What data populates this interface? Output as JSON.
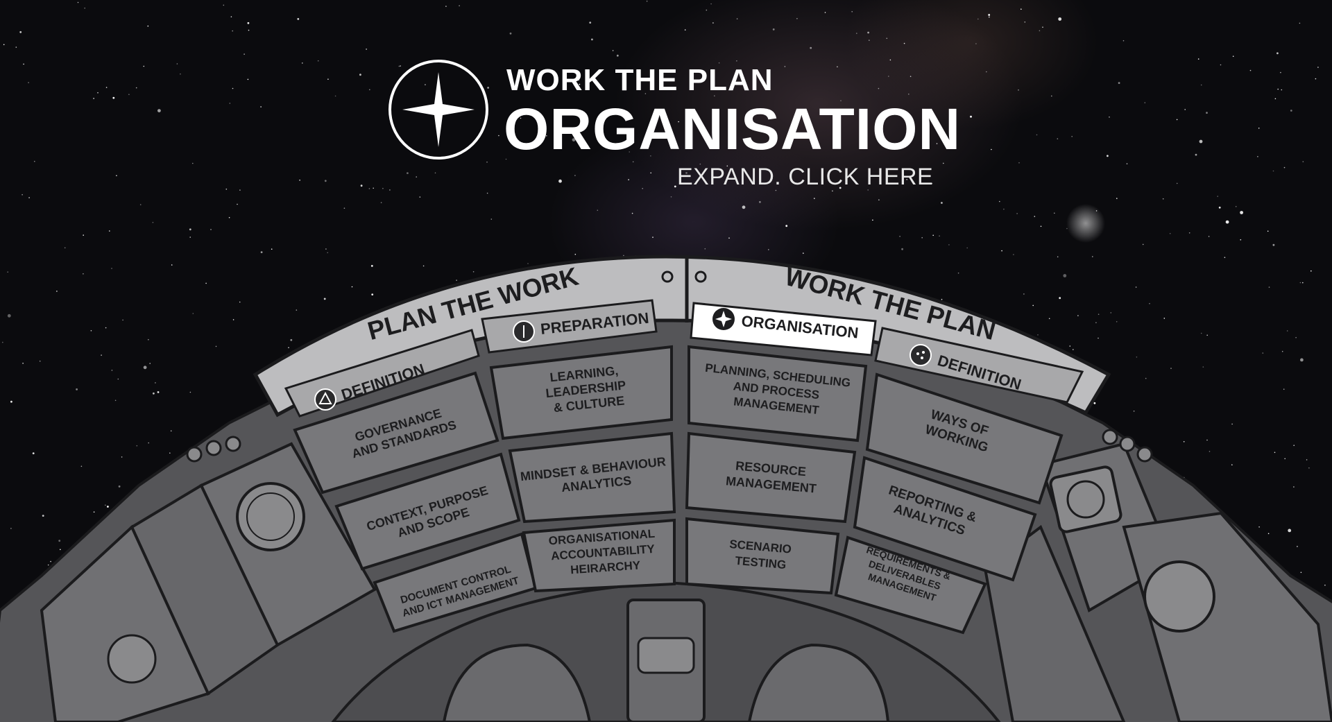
{
  "header": {
    "kicker": "WORK THE PLAN",
    "title": "ORGANISATION",
    "expand_link": "EXPAND. CLICK HERE"
  },
  "wheel": {
    "left_banner": "PLAN THE WORK",
    "right_banner": "WORK THE PLAN",
    "tabs": {
      "left_definition": "DEFINITION",
      "preparation": "PREPARATION",
      "organisation": "ORGANISATION",
      "right_definition": "DEFINITION"
    },
    "plates": {
      "governance": [
        "GOVERNANCE",
        "AND STANDARDS"
      ],
      "learning": [
        "LEARNING,",
        "LEADERSHIP",
        "& CULTURE"
      ],
      "planning": [
        "PLANNING, SCHEDULING",
        "AND PROCESS",
        "MANAGEMENT"
      ],
      "ways": [
        "WAYS OF",
        "WORKING"
      ],
      "context": [
        "CONTEXT, PURPOSE",
        "AND SCOPE"
      ],
      "mindset": [
        "MINDSET & BEHAVIOUR",
        "ANALYTICS"
      ],
      "resource": [
        "RESOURCE",
        "MANAGEMENT"
      ],
      "reporting": [
        "REPORTING &",
        "ANALYTICS"
      ],
      "document": [
        "DOCUMENT CONTROL",
        "AND ICT MANAGEMENT"
      ],
      "organisational": [
        "ORGANISATIONAL",
        "ACCOUNTABILITY",
        "HEIRARCHY"
      ],
      "scenario": [
        "SCENARIO",
        "TESTING"
      ],
      "requirements": [
        "REQUIREMENTS &",
        "DELIVERABLES",
        "MANAGEMENT"
      ]
    }
  },
  "colors": {
    "background": "#0b0b0e",
    "plate": "#77777a",
    "band": "#b4b4b6",
    "active_tab": "#ffffff",
    "ink": "#1d1d1f",
    "console": "#5c5c5f"
  },
  "icons": {
    "logo": "four-point-star-icon",
    "left_definition": "triangle-icon",
    "preparation": "circle-bar-icon",
    "organisation": "star-icon",
    "right_definition": "dots-icon"
  }
}
